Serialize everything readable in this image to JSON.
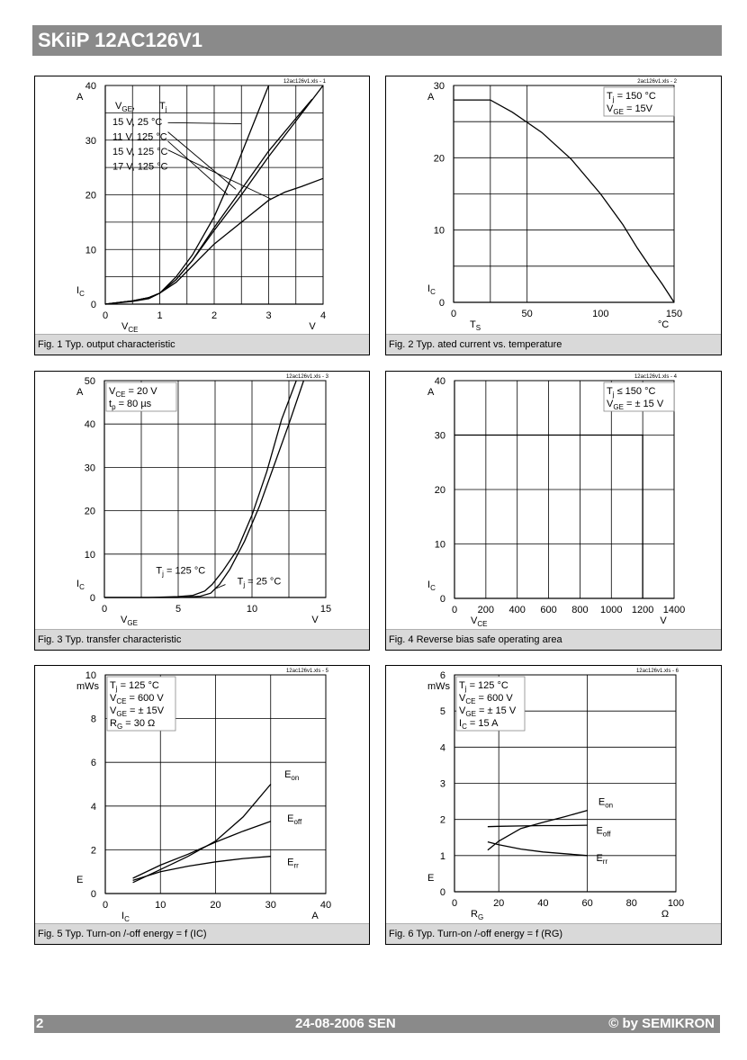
{
  "page": {
    "header_title": "SKiiP 12AC126V1",
    "footer_page": "2",
    "footer_date": "24-08-2006  SEN",
    "footer_copyright": "© by SEMIKRON"
  },
  "chart_data": [
    {
      "type": "line",
      "id": "fig1",
      "title": "Fig. 1 Typ. output characteristic",
      "file_label": "12ac126v1.xls - 1",
      "xlim": [
        0,
        4
      ],
      "ylim": [
        0,
        40
      ],
      "xticks": [
        0,
        1,
        2,
        3,
        4
      ],
      "yticks": [
        0,
        10,
        20,
        30,
        40
      ],
      "xgrid": [
        0,
        0.5,
        1,
        1.5,
        2,
        2.5,
        3,
        3.5,
        4
      ],
      "ygrid": [
        0,
        5,
        10,
        15,
        20,
        25,
        30,
        35,
        40
      ],
      "xlabel": "VCE",
      "xunit": "V",
      "ylabel": "IC",
      "yunit": "A",
      "legend": {
        "header": [
          "VGE,",
          "Tj"
        ],
        "rows": [
          "15 V,  25 °C",
          "11 V, 125 °C",
          "15 V, 125 °C",
          "17 V, 125 °C"
        ]
      },
      "series": [
        {
          "name": "15 V, 25 °C",
          "x": [
            0,
            0.5,
            0.8,
            1,
            1.3,
            1.6,
            2,
            2.4,
            2.8,
            3
          ],
          "y": [
            0,
            0.5,
            1,
            2,
            5,
            9,
            16,
            25,
            35,
            40
          ]
        },
        {
          "name": "11 V, 125 °C",
          "x": [
            0,
            0.5,
            0.8,
            1,
            1.3,
            1.6,
            2,
            2.5,
            3,
            3.3,
            3.6,
            4
          ],
          "y": [
            0,
            0.6,
            1.2,
            2,
            4,
            7,
            11,
            15,
            19,
            20.5,
            21.5,
            23
          ]
        },
        {
          "name": "15 V, 125 °C",
          "x": [
            0,
            0.5,
            0.8,
            1,
            1.3,
            1.6,
            2,
            2.5,
            3,
            3.5,
            3.8
          ],
          "y": [
            0,
            0.6,
            1.2,
            2,
            4.5,
            8,
            14,
            21,
            28,
            34,
            37.5
          ]
        },
        {
          "name": "17 V, 125 °C",
          "x": [
            0,
            0.5,
            0.8,
            1,
            1.3,
            1.6,
            2,
            2.5,
            3,
            3.5,
            4
          ],
          "y": [
            0,
            0.6,
            1.2,
            2,
            4.5,
            8,
            13.5,
            20,
            27,
            33.5,
            40
          ]
        }
      ],
      "pointers": [
        {
          "from": [
            1.15,
            33.2
          ],
          "to": [
            2.5,
            33
          ]
        },
        {
          "from": [
            1.15,
            31.5
          ],
          "to": [
            2.4,
            21
          ]
        },
        {
          "from": [
            1.15,
            29.8
          ],
          "to": [
            2.25,
            20
          ]
        },
        {
          "from": [
            1.15,
            28.2
          ],
          "to": [
            3.05,
            19.2
          ]
        }
      ]
    },
    {
      "type": "line",
      "id": "fig2",
      "title": "Fig. 2 Typ. ated current vs. temperature",
      "file_label": "2ac126v1.xls - 2",
      "xlim": [
        0,
        150
      ],
      "ylim": [
        0,
        30
      ],
      "xticks": [
        0,
        50,
        100,
        150
      ],
      "yticks": [
        0,
        10,
        20,
        30
      ],
      "xgrid": [
        0,
        25,
        50,
        150
      ],
      "ygrid": [
        0,
        5,
        10,
        15,
        20,
        25,
        30
      ],
      "xlabel": "TS",
      "xunit": "°C",
      "ylabel": "IC",
      "yunit": "A",
      "annotation": [
        "Tj    = 150 °C",
        "VGE = 15V"
      ],
      "series": [
        {
          "name": "IC",
          "x": [
            0,
            25,
            40,
            60,
            80,
            100,
            115,
            125,
            135,
            142,
            150
          ],
          "y": [
            28,
            28,
            26.3,
            23.5,
            19.8,
            15,
            10.8,
            7.5,
            4.5,
            2.5,
            0
          ]
        }
      ]
    },
    {
      "type": "line",
      "id": "fig3",
      "title": "Fig. 3 Typ. transfer characteristic",
      "file_label": "12ac126v1.xls - 3",
      "xlim": [
        0,
        15
      ],
      "ylim": [
        0,
        50
      ],
      "xticks": [
        0,
        5,
        10,
        15
      ],
      "yticks": [
        0,
        10,
        20,
        30,
        40,
        50
      ],
      "xgrid": [
        0,
        2.5,
        5,
        7.5,
        10,
        12.5,
        15
      ],
      "ygrid": [
        0,
        10,
        20,
        30,
        40,
        50
      ],
      "xlabel": "VGE",
      "xunit": "V",
      "ylabel": "IC",
      "yunit": "A",
      "annotation": [
        "VCE  = 20 V",
        "tp      = 80 µs"
      ],
      "labels": [
        {
          "text": "Tj = 125 °C",
          "at": [
            3.5,
            5.5
          ]
        },
        {
          "text": "Tj = 25 °C",
          "at": [
            9,
            3
          ]
        }
      ],
      "series": [
        {
          "name": "Tj = 125 °C",
          "x": [
            0,
            3,
            5,
            6,
            6.8,
            7.3,
            8,
            9,
            10,
            11,
            12,
            13
          ],
          "y": [
            0,
            0,
            0.2,
            0.5,
            1.5,
            3,
            6,
            11,
            19,
            29,
            41,
            50
          ]
        },
        {
          "name": "Tj = 25 °C",
          "x": [
            0,
            3,
            5,
            6.5,
            7.2,
            7.8,
            8.5,
            9.5,
            10.5,
            11.5,
            12.5,
            13.5
          ],
          "y": [
            0,
            0,
            0,
            0.3,
            1,
            3,
            6.5,
            13,
            21,
            30.5,
            40,
            50
          ]
        }
      ],
      "pointers": [
        {
          "from": [
            8.2,
            3
          ],
          "to": [
            7.5,
            2
          ]
        }
      ]
    },
    {
      "type": "line",
      "id": "fig4",
      "title": "Fig. 4 Reverse bias safe operating area",
      "file_label": "12ac126v1.xls - 4",
      "xlim": [
        0,
        1400
      ],
      "ylim": [
        0,
        40
      ],
      "xticks": [
        0,
        200,
        400,
        600,
        800,
        1000,
        1200,
        1400
      ],
      "yticks": [
        0,
        10,
        20,
        30,
        40
      ],
      "xgrid": [
        0,
        200,
        400,
        600,
        800,
        1000,
        1200,
        1400
      ],
      "ygrid": [
        0,
        10,
        20,
        30,
        40
      ],
      "xlabel": "VCE",
      "xunit": "V",
      "ylabel": "IC",
      "yunit": "A",
      "annotation": [
        "Tj    ≤ 150 °C",
        "VGE = ± 15 V"
      ],
      "series": [
        {
          "name": "RBSOA",
          "x": [
            0,
            1200,
            1200
          ],
          "y": [
            30,
            30,
            0
          ]
        }
      ]
    },
    {
      "type": "line",
      "id": "fig5",
      "title": "Fig. 5 Typ. Turn-on /-off energy = f (IC)",
      "file_label": "12ac126v1.xls - 5",
      "xlim": [
        0,
        40
      ],
      "ylim": [
        0,
        10
      ],
      "xticks": [
        0,
        10,
        20,
        30,
        40
      ],
      "yticks": [
        0,
        2,
        4,
        6,
        8,
        10
      ],
      "xgrid": [
        0,
        10,
        20,
        30,
        40
      ],
      "ygrid": [
        0,
        2,
        4,
        6,
        8,
        10
      ],
      "xlabel": "IC",
      "xunit": "A",
      "ylabel": "E",
      "yunit": "mWs",
      "annotation": [
        "Tj    = 125 °C",
        "VCE = 600 V",
        "VGE = ± 15V",
        "RG    = 30 Ω"
      ],
      "series": [
        {
          "name": "Eon",
          "x": [
            5,
            10,
            15,
            20,
            25,
            30
          ],
          "y": [
            0.5,
            1.1,
            1.7,
            2.4,
            3.5,
            5.0
          ]
        },
        {
          "name": "Eoff",
          "x": [
            5,
            10,
            15,
            20,
            25,
            30
          ],
          "y": [
            0.7,
            1.3,
            1.8,
            2.35,
            2.85,
            3.3
          ]
        },
        {
          "name": "Err",
          "x": [
            5,
            10,
            15,
            20,
            25,
            30
          ],
          "y": [
            0.6,
            1.0,
            1.25,
            1.45,
            1.6,
            1.7
          ]
        }
      ],
      "labels": [
        {
          "text": "Eon",
          "at": [
            32.5,
            5.3
          ]
        },
        {
          "text": "Eoff",
          "at": [
            33,
            3.3
          ]
        },
        {
          "text": "Err",
          "at": [
            33,
            1.3
          ]
        }
      ]
    },
    {
      "type": "line",
      "id": "fig6",
      "title": "Fig. 6 Typ. Turn-on /-off energy = f (RG)",
      "file_label": "12ac126v1.xls - 6",
      "xlim": [
        0,
        100
      ],
      "ylim": [
        0,
        6
      ],
      "xticks": [
        0,
        20,
        40,
        60,
        80,
        100
      ],
      "yticks": [
        0,
        1,
        2,
        3,
        4,
        5,
        6
      ],
      "xgrid": [
        0,
        20,
        60,
        100
      ],
      "ygrid": [
        0,
        1,
        2,
        3,
        4,
        5,
        6
      ],
      "xlabel": "RG",
      "xunit": "Ω",
      "ylabel": "E",
      "yunit": "mWs",
      "annotation": [
        "Tj    = 125 °C",
        "VCE = 600 V",
        "VGE = ± 15 V",
        "IC   = 15 A"
      ],
      "series": [
        {
          "name": "Eon",
          "x": [
            15,
            20,
            30,
            40,
            50,
            60
          ],
          "y": [
            1.15,
            1.4,
            1.75,
            1.92,
            2.08,
            2.25
          ]
        },
        {
          "name": "Eoff",
          "x": [
            15,
            20,
            30,
            40,
            50,
            60
          ],
          "y": [
            1.8,
            1.81,
            1.82,
            1.83,
            1.83,
            1.84
          ]
        },
        {
          "name": "Err",
          "x": [
            15,
            20,
            30,
            40,
            50,
            60
          ],
          "y": [
            1.38,
            1.3,
            1.18,
            1.1,
            1.05,
            1.0
          ]
        }
      ],
      "labels": [
        {
          "text": "Eon",
          "at": [
            65,
            2.4
          ]
        },
        {
          "text": "Eoff",
          "at": [
            64,
            1.6
          ]
        },
        {
          "text": "Err",
          "at": [
            64,
            0.85
          ]
        }
      ]
    }
  ]
}
